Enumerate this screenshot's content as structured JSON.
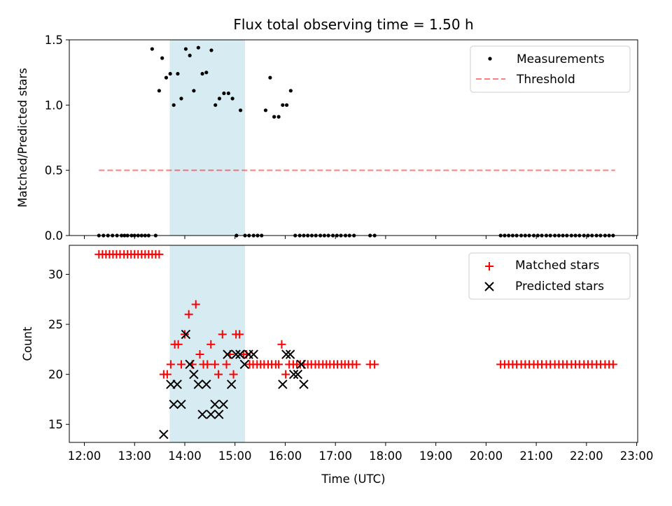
{
  "chart_data": [
    {
      "type": "scatter",
      "title": "Flux total observing time = 1.50 h",
      "xlabel": "",
      "ylabel": "Matched/Predicted stars",
      "ylim": [
        0,
        1.5
      ],
      "xlim": [
        11.7,
        23.02
      ],
      "yticks": [
        0.0,
        0.5,
        1.0,
        1.5
      ],
      "ytick_labels": [
        "0.0",
        "0.5",
        "1.0",
        "1.5"
      ],
      "highlight_span": [
        13.7,
        15.2
      ],
      "legend": {
        "position": "top-right",
        "entries": [
          "Measurements",
          "Threshold"
        ]
      },
      "threshold": {
        "name": "Threshold",
        "y": 0.5,
        "x": [
          12.29,
          22.57
        ]
      },
      "series": [
        {
          "name": "Measurements",
          "x": [
            12.29,
            12.38,
            12.47,
            12.56,
            12.65,
            12.74,
            12.8,
            12.86,
            12.94,
            13.0,
            13.07,
            13.14,
            13.21,
            13.28,
            13.35,
            13.42,
            13.49,
            13.55,
            13.63,
            13.71,
            13.78,
            13.86,
            13.93,
            14.02,
            14.1,
            14.18,
            14.27,
            14.35,
            14.43,
            14.53,
            14.61,
            14.69,
            14.78,
            14.87,
            14.95,
            15.03,
            15.11,
            15.2,
            15.28,
            15.37,
            15.45,
            15.53,
            15.61,
            15.7,
            15.78,
            15.87,
            15.95,
            16.03,
            16.11,
            16.2,
            16.29,
            16.37,
            16.45,
            16.53,
            16.61,
            16.7,
            16.78,
            16.86,
            16.95,
            17.03,
            17.11,
            17.2,
            17.28,
            17.37,
            17.69,
            17.78,
            20.29,
            20.37,
            20.45,
            20.53,
            20.61,
            20.7,
            20.78,
            20.86,
            20.95,
            21.03,
            21.11,
            21.2,
            21.28,
            21.37,
            21.45,
            21.53,
            21.61,
            21.7,
            21.78,
            21.86,
            21.95,
            22.03,
            22.11,
            22.2,
            22.28,
            22.37,
            22.45,
            22.53
          ],
          "y": [
            0,
            0,
            0,
            0,
            0,
            0,
            0,
            0,
            0,
            0,
            0,
            0,
            0,
            0,
            1.43,
            0,
            1.11,
            1.36,
            1.21,
            1.24,
            1.0,
            1.24,
            1.05,
            1.43,
            1.38,
            1.11,
            1.44,
            1.24,
            1.25,
            1.42,
            1.0,
            1.05,
            1.09,
            1.09,
            1.05,
            0,
            0.96,
            0,
            0,
            0,
            0,
            0,
            0.96,
            1.21,
            0.91,
            0.91,
            1.0,
            1.0,
            1.11,
            0,
            0,
            0,
            0,
            0,
            0,
            0,
            0,
            0,
            0,
            0,
            0,
            0,
            0,
            0,
            0,
            0,
            0,
            0,
            0,
            0,
            0,
            0,
            0,
            0,
            0,
            0,
            0,
            0,
            0,
            0,
            0,
            0,
            0,
            0,
            0,
            0,
            0,
            0,
            0,
            0,
            0,
            0,
            0,
            0
          ]
        }
      ]
    },
    {
      "type": "scatter",
      "title": "",
      "xlabel": "Time (UTC)",
      "ylabel": "Count",
      "ylim": [
        13.2,
        32.9
      ],
      "xlim": [
        11.7,
        23.02
      ],
      "yticks": [
        15,
        20,
        25,
        30
      ],
      "ytick_labels": [
        "15",
        "20",
        "25",
        "30"
      ],
      "xticks": [
        12,
        13,
        14,
        15,
        16,
        17,
        18,
        19,
        20,
        21,
        22,
        23
      ],
      "xtick_labels": [
        "12:00",
        "13:00",
        "14:00",
        "15:00",
        "16:00",
        "17:00",
        "18:00",
        "19:00",
        "20:00",
        "21:00",
        "22:00",
        "23:00"
      ],
      "highlight_span": [
        13.7,
        15.2
      ],
      "legend": {
        "position": "top-right",
        "entries": [
          "Matched stars",
          "Predicted stars"
        ]
      },
      "series": [
        {
          "name": "Matched stars",
          "marker": "+",
          "color": "#ff0000",
          "x": [
            12.29,
            12.36,
            12.43,
            12.5,
            12.57,
            12.64,
            12.71,
            12.79,
            12.86,
            12.93,
            13.0,
            13.07,
            13.14,
            13.21,
            13.28,
            13.35,
            13.42,
            13.49,
            13.58,
            13.65,
            13.72,
            13.8,
            13.87,
            13.93,
            14.0,
            14.08,
            14.15,
            14.22,
            14.3,
            14.37,
            14.45,
            14.52,
            14.6,
            14.67,
            14.75,
            14.83,
            14.9,
            14.97,
            15.02,
            15.09,
            15.17,
            15.23,
            15.29,
            15.36,
            15.44,
            15.51,
            15.58,
            15.66,
            15.73,
            15.81,
            15.87,
            15.93,
            16.01,
            16.08,
            16.16,
            16.23,
            16.3,
            16.37,
            16.45,
            16.52,
            16.6,
            16.67,
            16.75,
            16.82,
            16.89,
            16.97,
            17.04,
            17.12,
            17.19,
            17.26,
            17.34,
            17.42,
            17.69,
            17.78,
            20.29,
            20.37,
            20.45,
            20.53,
            20.61,
            20.7,
            20.78,
            20.86,
            20.95,
            21.03,
            21.11,
            21.2,
            21.28,
            21.37,
            21.45,
            21.53,
            21.61,
            21.7,
            21.78,
            21.86,
            21.95,
            22.03,
            22.11,
            22.2,
            22.28,
            22.37,
            22.45,
            22.53
          ],
          "y": [
            32,
            32,
            32,
            32,
            32,
            32,
            32,
            32,
            32,
            32,
            32,
            32,
            32,
            32,
            32,
            32,
            32,
            32,
            20,
            20,
            21,
            23,
            23,
            21,
            24,
            26,
            21,
            27,
            22,
            21,
            21,
            23,
            21,
            20,
            24,
            21,
            22,
            20,
            24,
            24,
            22,
            22,
            21,
            21,
            21,
            21,
            21,
            21,
            21,
            21,
            21,
            23,
            20,
            21,
            21,
            21,
            21,
            21,
            21,
            21,
            21,
            21,
            21,
            21,
            21,
            21,
            21,
            21,
            21,
            21,
            21,
            21,
            21,
            21,
            21,
            21,
            21,
            21,
            21,
            21,
            21,
            21,
            21,
            21,
            21,
            21,
            21,
            21,
            21,
            21,
            21,
            21,
            21,
            21,
            21,
            21,
            21,
            21,
            21,
            21,
            21,
            21
          ]
        },
        {
          "name": "Predicted stars",
          "marker": "x",
          "color": "#000000",
          "x": [
            13.58,
            13.72,
            13.78,
            13.85,
            13.93,
            14.02,
            14.1,
            14.18,
            14.27,
            14.35,
            14.43,
            14.52,
            14.6,
            14.68,
            14.77,
            14.85,
            14.93,
            15.02,
            15.1,
            15.19,
            15.27,
            15.37,
            15.95,
            16.02,
            16.1,
            16.17,
            16.25,
            16.32,
            16.37
          ],
          "y": [
            14,
            19,
            17,
            19,
            17,
            24,
            21,
            20,
            19,
            16,
            19,
            16,
            17,
            16,
            17,
            22,
            19,
            22,
            22,
            21,
            22,
            22,
            19,
            22,
            22,
            20,
            20,
            21,
            19
          ]
        }
      ]
    }
  ]
}
